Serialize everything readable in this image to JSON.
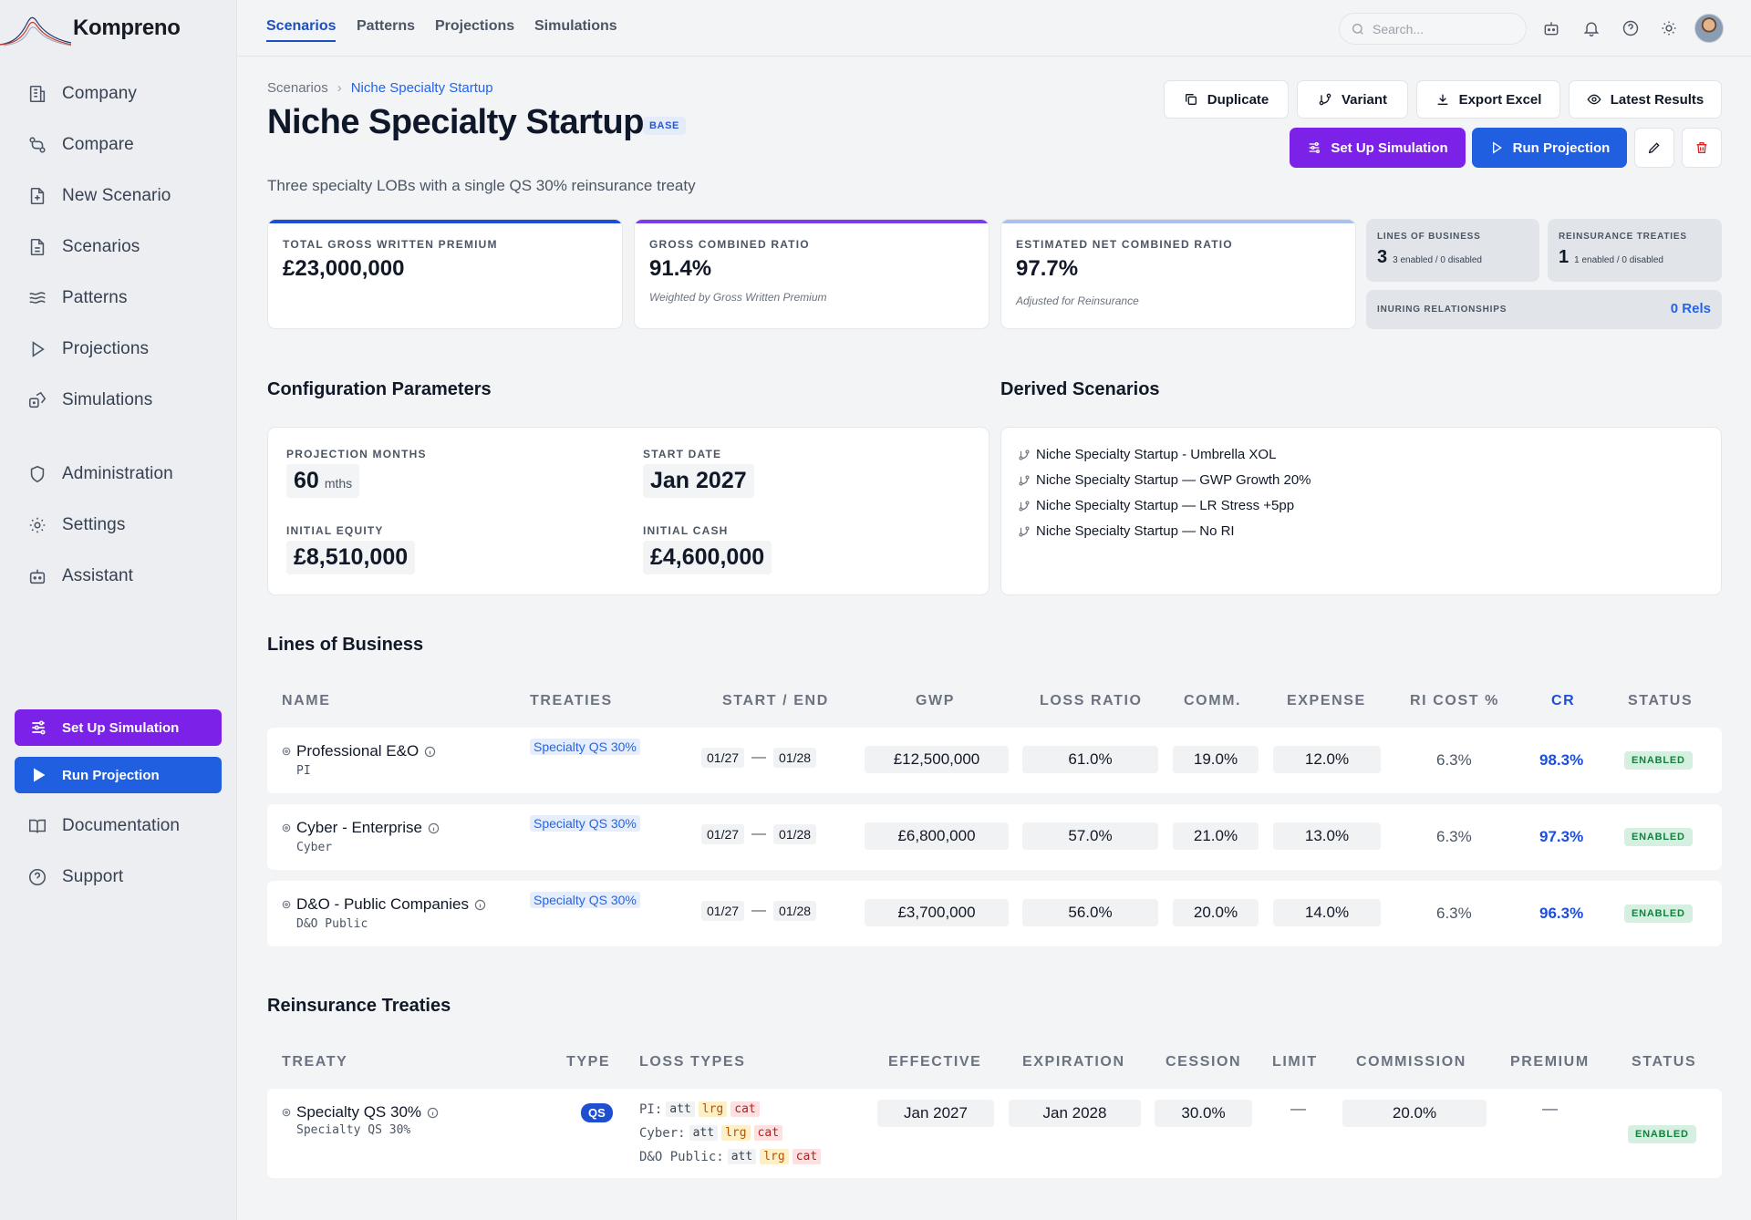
{
  "brand": {
    "name": "Kompreno"
  },
  "sidebar": {
    "items": [
      {
        "label": "Company",
        "icon": "building-icon"
      },
      {
        "label": "Compare",
        "icon": "compare-icon"
      },
      {
        "label": "New Scenario",
        "icon": "file-plus-icon"
      },
      {
        "label": "Scenarios",
        "icon": "file-icon"
      },
      {
        "label": "Patterns",
        "icon": "waves-icon"
      },
      {
        "label": "Projections",
        "icon": "play-icon"
      },
      {
        "label": "Simulations",
        "icon": "dice-icon"
      },
      {
        "label": "Administration",
        "icon": "shield-icon"
      },
      {
        "label": "Settings",
        "icon": "gear-icon"
      },
      {
        "label": "Assistant",
        "icon": "bot-icon"
      }
    ],
    "setup_button": "Set Up Simulation",
    "run_button": "Run Projection",
    "bottom_items": [
      {
        "label": "Documentation",
        "icon": "book-icon"
      },
      {
        "label": "Support",
        "icon": "help-icon"
      }
    ]
  },
  "topbar": {
    "tabs": [
      "Scenarios",
      "Patterns",
      "Projections",
      "Simulations"
    ],
    "active_tab": "Scenarios",
    "search_placeholder": "Search..."
  },
  "breadcrumb": {
    "root": "Scenarios",
    "current": "Niche Specialty Startup"
  },
  "page": {
    "title": "Niche Specialty Startup",
    "badge": "BASE",
    "subtitle": "Three specialty LOBs with a single QS 30% reinsurance treaty"
  },
  "actions": {
    "duplicate": "Duplicate",
    "variant": "Variant",
    "export": "Export Excel",
    "latest": "Latest Results",
    "setup": "Set Up Simulation",
    "run": "Run Projection"
  },
  "stats": {
    "gwp": {
      "label": "TOTAL GROSS WRITTEN PREMIUM",
      "value": "£23,000,000",
      "accent": "#1d4ed8"
    },
    "gross_cr": {
      "label": "GROSS COMBINED RATIO",
      "value": "91.4%",
      "note": "Weighted by Gross Written Premium",
      "accent": "#7c3aed"
    },
    "net_cr": {
      "label": "ESTIMATED NET COMBINED RATIO",
      "value": "97.7%",
      "note": "Adjusted for Reinsurance",
      "accent": "#a9c1ec"
    },
    "lobs": {
      "label": "LINES OF BUSINESS",
      "value": "3",
      "detail": "3 enabled / 0 disabled"
    },
    "treaties": {
      "label": "REINSURANCE TREATIES",
      "value": "1",
      "detail": "1 enabled / 0 disabled"
    },
    "inuring": {
      "label": "INURING RELATIONSHIPS",
      "value": "0 Rels"
    }
  },
  "config": {
    "title": "Configuration Parameters",
    "projection_months": {
      "label": "PROJECTION MONTHS",
      "value": "60",
      "unit": "mths"
    },
    "start_date": {
      "label": "START DATE",
      "value": "Jan 2027"
    },
    "initial_equity": {
      "label": "INITIAL EQUITY",
      "value": "£8,510,000"
    },
    "initial_cash": {
      "label": "INITIAL CASH",
      "value": "£4,600,000"
    }
  },
  "derived": {
    "title": "Derived Scenarios",
    "items": [
      "Niche Specialty Startup - Umbrella XOL",
      "Niche Specialty Startup — GWP Growth 20%",
      "Niche Specialty Startup — LR Stress +5pp",
      "Niche Specialty Startup — No RI"
    ]
  },
  "lob_table": {
    "title": "Lines of Business",
    "headers": [
      "NAME",
      "TREATIES",
      "START / END",
      "GWP",
      "LOSS RATIO",
      "COMM.",
      "EXPENSE",
      "RI COST %",
      "CR",
      "STATUS"
    ],
    "rows": [
      {
        "name": "Professional E&O",
        "code": "PI",
        "treaty": "Specialty QS 30%",
        "start": "01/27",
        "end": "01/28",
        "gwp": "£12,500,000",
        "loss_ratio": "61.0%",
        "comm": "19.0%",
        "expense": "12.0%",
        "ri_cost": "6.3%",
        "cr": "98.3%",
        "status": "ENABLED"
      },
      {
        "name": "Cyber - Enterprise",
        "code": "Cyber",
        "treaty": "Specialty QS 30%",
        "start": "01/27",
        "end": "01/28",
        "gwp": "£6,800,000",
        "loss_ratio": "57.0%",
        "comm": "21.0%",
        "expense": "13.0%",
        "ri_cost": "6.3%",
        "cr": "97.3%",
        "status": "ENABLED"
      },
      {
        "name": "D&O - Public Companies",
        "code": "D&O Public",
        "treaty": "Specialty QS 30%",
        "start": "01/27",
        "end": "01/28",
        "gwp": "£3,700,000",
        "loss_ratio": "56.0%",
        "comm": "20.0%",
        "expense": "14.0%",
        "ri_cost": "6.3%",
        "cr": "96.3%",
        "status": "ENABLED"
      }
    ],
    "sep": "—"
  },
  "treaty_table": {
    "title": "Reinsurance Treaties",
    "headers": [
      "TREATY",
      "TYPE",
      "LOSS TYPES",
      "EFFECTIVE",
      "EXPIRATION",
      "CESSION",
      "LIMIT",
      "COMMISSION",
      "PREMIUM",
      "STATUS"
    ],
    "rows": [
      {
        "name": "Specialty QS 30%",
        "code": "Specialty QS 30%",
        "type": "QS",
        "loss_types": [
          {
            "lob": "PI:",
            "tags": [
              "att",
              "lrg",
              "cat"
            ]
          },
          {
            "lob": "Cyber:",
            "tags": [
              "att",
              "lrg",
              "cat"
            ]
          },
          {
            "lob": "D&O Public:",
            "tags": [
              "att",
              "lrg",
              "cat"
            ]
          }
        ],
        "effective": "Jan 2027",
        "expiration": "Jan 2028",
        "cession": "30.0%",
        "limit": "—",
        "commission": "20.0%",
        "premium": "—",
        "status": "ENABLED"
      }
    ]
  }
}
